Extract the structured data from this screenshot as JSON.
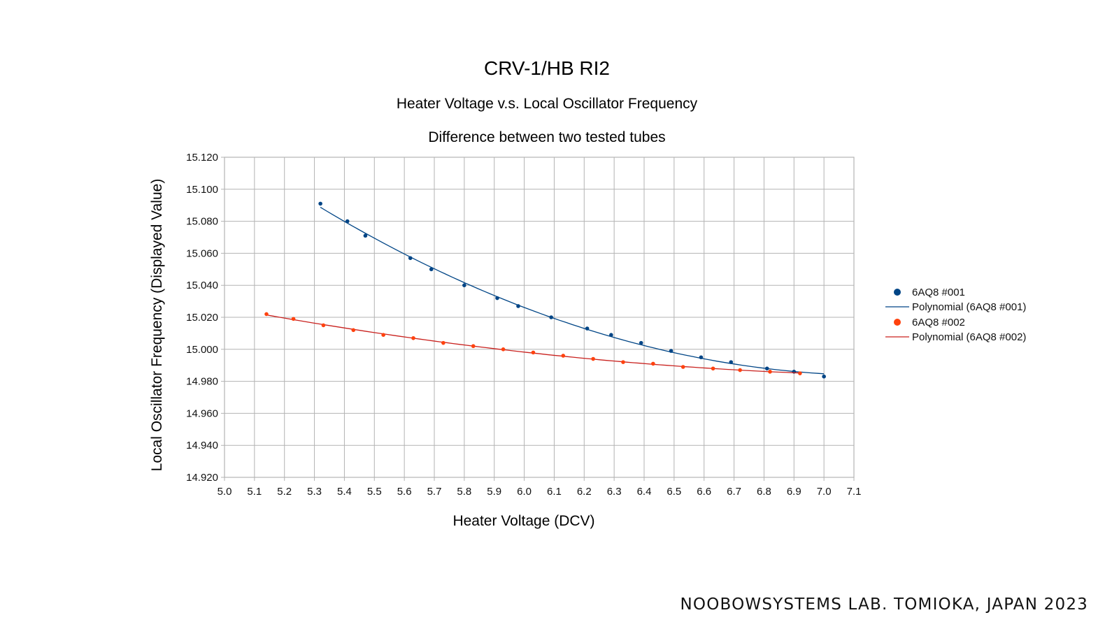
{
  "chart_data": {
    "type": "scatter",
    "title": "CRV-1/HB RI2",
    "subtitle": "Heater Voltage v.s. Local Oscillator Frequency",
    "subtitle2": "Difference between two tested tubes",
    "xlabel": "Heater Voltage (DCV)",
    "ylabel": "Local Oscillator Frequency (Displayed Value)",
    "xlim": [
      5.0,
      7.1
    ],
    "ylim": [
      14.92,
      15.12
    ],
    "xticks": [
      "5.0",
      "5.1",
      "5.2",
      "5.3",
      "5.4",
      "5.5",
      "5.6",
      "5.7",
      "5.8",
      "5.9",
      "6.0",
      "6.1",
      "6.2",
      "6.3",
      "6.4",
      "6.5",
      "6.6",
      "6.7",
      "6.8",
      "6.9",
      "7.0",
      "7.1"
    ],
    "yticks": [
      "15.120",
      "15.100",
      "15.080",
      "15.060",
      "15.040",
      "15.020",
      "15.000",
      "14.980",
      "14.960",
      "14.940",
      "14.920"
    ],
    "grid": true,
    "legend_position": "right",
    "series": [
      {
        "name": "6AQ8 #001",
        "color": "#004586",
        "trend_name": "Polynomial (6AQ8 #001)",
        "x": [
          5.32,
          5.41,
          5.47,
          5.62,
          5.69,
          5.8,
          5.91,
          5.98,
          6.09,
          6.21,
          6.29,
          6.39,
          6.49,
          6.59,
          6.69,
          6.81,
          6.9,
          7.0
        ],
        "y": [
          15.091,
          15.08,
          15.071,
          15.057,
          15.05,
          15.04,
          15.032,
          15.027,
          15.02,
          15.013,
          15.009,
          15.004,
          14.999,
          14.995,
          14.992,
          14.988,
          14.986,
          14.983
        ]
      },
      {
        "name": "6AQ8 #002",
        "color": "#ff420e",
        "trend_name": "Polynomial (6AQ8 #002)",
        "x": [
          5.14,
          5.23,
          5.33,
          5.43,
          5.53,
          5.63,
          5.73,
          5.83,
          5.93,
          6.03,
          6.13,
          6.23,
          6.33,
          6.43,
          6.53,
          6.63,
          6.72,
          6.82,
          6.92
        ],
        "y": [
          15.022,
          15.019,
          15.015,
          15.012,
          15.009,
          15.007,
          15.004,
          15.002,
          15.0,
          14.998,
          14.996,
          14.994,
          14.992,
          14.991,
          14.989,
          14.988,
          14.987,
          14.986,
          14.985
        ]
      }
    ]
  },
  "footer": "NOOBOWSYSTEMS LAB. TOMIOKA, JAPAN 2023"
}
